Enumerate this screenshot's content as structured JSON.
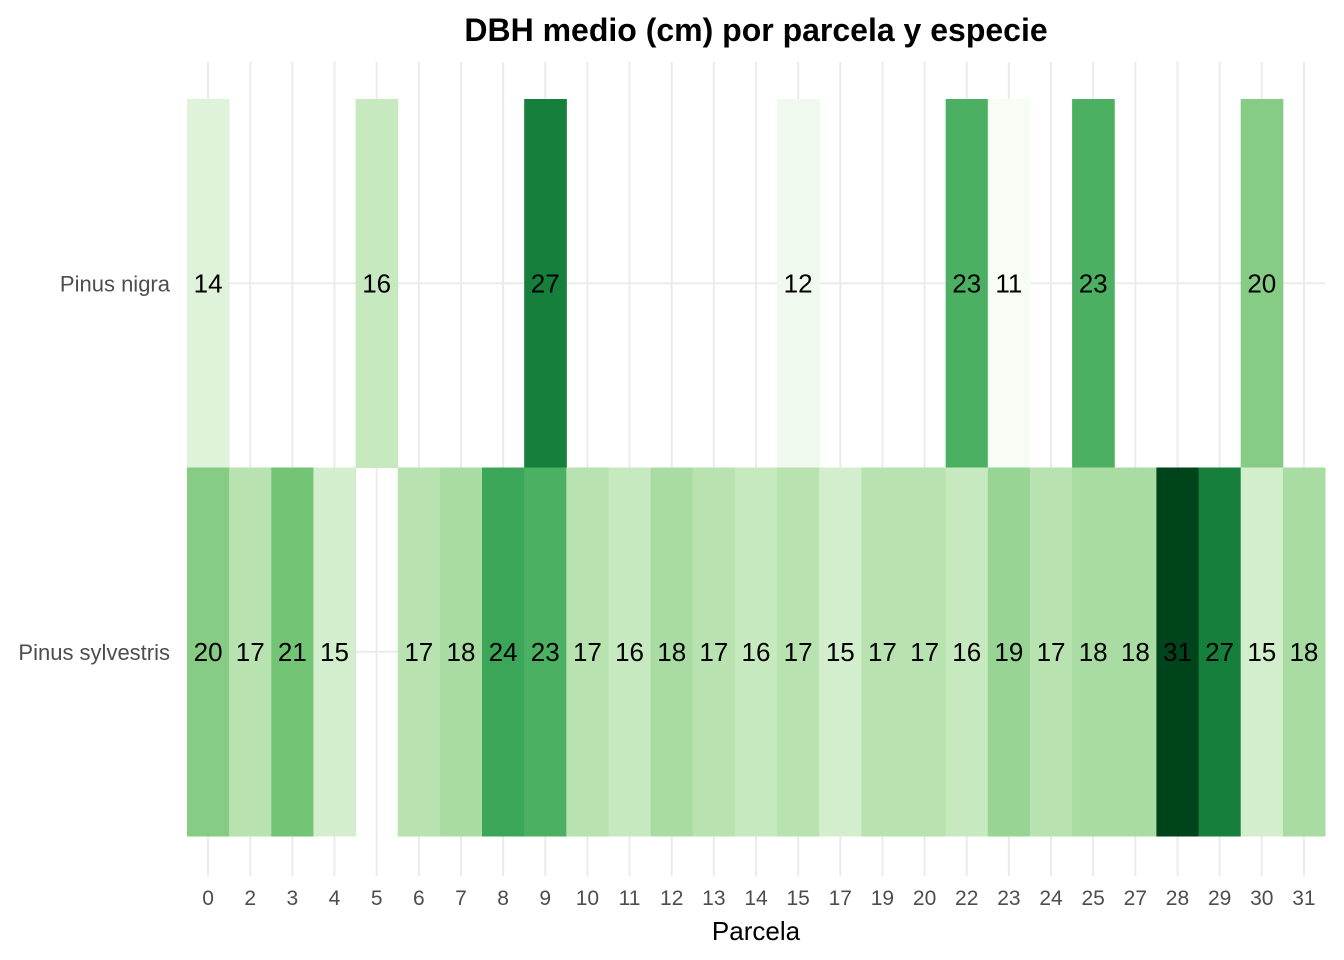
{
  "chart_data": {
    "type": "heatmap",
    "title": "DBH medio (cm) por parcela y especie",
    "xlabel": "Parcela",
    "ylabel": "",
    "x_categories": [
      "0",
      "2",
      "3",
      "4",
      "5",
      "6",
      "7",
      "8",
      "9",
      "10",
      "11",
      "12",
      "13",
      "14",
      "15",
      "17",
      "19",
      "20",
      "22",
      "23",
      "24",
      "25",
      "27",
      "28",
      "29",
      "30",
      "31"
    ],
    "y_categories": [
      "Pinus nigra",
      "Pinus sylvestris"
    ],
    "grid": true,
    "legend": "none",
    "color_scale": {
      "low": "#f7fcf5",
      "high": "#00441b",
      "stops": [
        "#f7fcf5",
        "#e5f5e0",
        "#c7e9c0",
        "#a1d99b",
        "#74c476",
        "#41ab5d",
        "#238b45",
        "#006d2c",
        "#00441b"
      ],
      "range": [
        11,
        31
      ]
    },
    "series": [
      {
        "name": "Pinus nigra",
        "values": [
          14,
          null,
          null,
          null,
          16,
          null,
          null,
          null,
          27,
          null,
          null,
          null,
          null,
          null,
          12,
          null,
          null,
          null,
          23,
          11,
          null,
          23,
          null,
          null,
          null,
          20,
          null
        ]
      },
      {
        "name": "Pinus sylvestris",
        "values": [
          20,
          17,
          21,
          15,
          null,
          17,
          18,
          24,
          23,
          17,
          16,
          18,
          17,
          16,
          17,
          15,
          17,
          17,
          16,
          19,
          17,
          18,
          18,
          31,
          27,
          15,
          18
        ]
      }
    ]
  }
}
